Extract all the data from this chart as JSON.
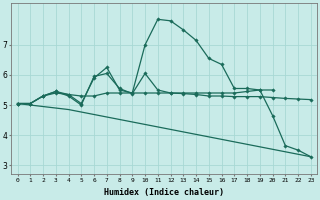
{
  "background_color": "#c8ebe8",
  "grid_color": "#a8d8d4",
  "line_color": "#1a6b5a",
  "xlabel": "Humidex (Indice chaleur)",
  "xlim": [
    -0.5,
    23.5
  ],
  "ylim": [
    2.7,
    8.4
  ],
  "yticks": [
    3,
    4,
    5,
    6,
    7
  ],
  "xticks": [
    0,
    1,
    2,
    3,
    4,
    5,
    6,
    7,
    8,
    9,
    10,
    11,
    12,
    13,
    14,
    15,
    16,
    17,
    18,
    19,
    20,
    21,
    22,
    23
  ],
  "series": [
    {
      "x": [
        0,
        1,
        2,
        3,
        4,
        5,
        6,
        7,
        8,
        9,
        10,
        11,
        12,
        13,
        14,
        15,
        16,
        17,
        18,
        19,
        20
      ],
      "y": [
        5.05,
        5.05,
        5.3,
        5.4,
        5.35,
        5.3,
        5.3,
        5.4,
        5.4,
        5.4,
        5.4,
        5.4,
        5.4,
        5.4,
        5.4,
        5.4,
        5.4,
        5.4,
        5.45,
        5.5,
        5.5
      ],
      "marker": true,
      "lw": 0.9
    },
    {
      "x": [
        0,
        1,
        2,
        3,
        4,
        5,
        6,
        7,
        8,
        9,
        10,
        11,
        12,
        13,
        14,
        15,
        16,
        17,
        18,
        19,
        20,
        21,
        22,
        23
      ],
      "y": [
        5.05,
        5.05,
        5.3,
        5.45,
        5.35,
        5.05,
        5.9,
        6.25,
        5.5,
        5.4,
        7.0,
        7.85,
        7.8,
        7.5,
        7.15,
        6.55,
        6.35,
        5.55,
        5.55,
        5.5,
        4.65,
        3.65,
        3.5,
        3.28
      ],
      "marker": true,
      "lw": 0.9
    },
    {
      "x": [
        0,
        1,
        2,
        3,
        4,
        5,
        6,
        7,
        8,
        9,
        10,
        11,
        12,
        13,
        14,
        15,
        16,
        17,
        18,
        19,
        20,
        21,
        22,
        23
      ],
      "y": [
        5.05,
        5.05,
        5.3,
        5.45,
        5.3,
        5.0,
        5.95,
        6.05,
        5.55,
        5.38,
        6.05,
        5.5,
        5.4,
        5.38,
        5.35,
        5.3,
        5.3,
        5.28,
        5.28,
        5.28,
        5.25,
        5.22,
        5.2,
        5.18
      ],
      "marker": true,
      "lw": 0.9
    },
    {
      "x": [
        0,
        4,
        23
      ],
      "y": [
        5.05,
        4.85,
        3.28
      ],
      "marker": false,
      "lw": 0.9
    }
  ]
}
